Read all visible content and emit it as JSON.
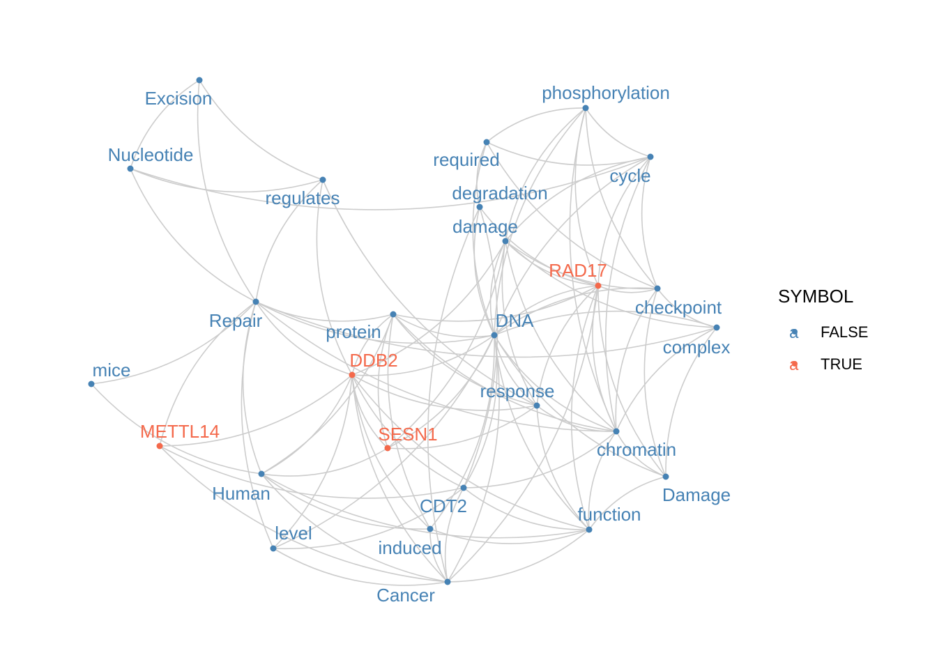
{
  "colors": {
    "false_color": "#4682b4",
    "true_color": "#f4694b",
    "edge_color": "#cccccc"
  },
  "legend": {
    "title": "SYMBOL",
    "items": [
      {
        "key_glyph": "a",
        "label": "FALSE",
        "symbol": false
      },
      {
        "key_glyph": "a",
        "label": "TRUE",
        "symbol": true
      }
    ]
  },
  "nodes": [
    {
      "id": "Excision",
      "label": "Excision",
      "symbol": false
    },
    {
      "id": "Nucleotide",
      "label": "Nucleotide",
      "symbol": false
    },
    {
      "id": "regulates",
      "label": "regulates",
      "symbol": false
    },
    {
      "id": "Repair",
      "label": "Repair",
      "symbol": false
    },
    {
      "id": "mice",
      "label": "mice",
      "symbol": false
    },
    {
      "id": "METTL14",
      "label": "METTL14",
      "symbol": true
    },
    {
      "id": "Human",
      "label": "Human",
      "symbol": false
    },
    {
      "id": "level",
      "label": "level",
      "symbol": false
    },
    {
      "id": "protein",
      "label": "protein",
      "symbol": false
    },
    {
      "id": "DDB2",
      "label": "DDB2",
      "symbol": true
    },
    {
      "id": "SESN1",
      "label": "SESN1",
      "symbol": true
    },
    {
      "id": "CDT2",
      "label": "CDT2",
      "symbol": false
    },
    {
      "id": "induced",
      "label": "induced",
      "symbol": false
    },
    {
      "id": "Cancer",
      "label": "Cancer",
      "symbol": false
    },
    {
      "id": "phosphorylation",
      "label": "phosphorylation",
      "symbol": false
    },
    {
      "id": "required",
      "label": "required",
      "symbol": false
    },
    {
      "id": "cycle",
      "label": "cycle",
      "symbol": false
    },
    {
      "id": "degradation",
      "label": "degradation",
      "symbol": false
    },
    {
      "id": "damage",
      "label": "damage",
      "symbol": false
    },
    {
      "id": "RAD17",
      "label": "RAD17",
      "symbol": true
    },
    {
      "id": "checkpoint",
      "label": "checkpoint",
      "symbol": false
    },
    {
      "id": "complex",
      "label": "complex",
      "symbol": false
    },
    {
      "id": "DNA",
      "label": "DNA",
      "symbol": false
    },
    {
      "id": "response",
      "label": "response",
      "symbol": false
    },
    {
      "id": "chromatin",
      "label": "chromatin",
      "symbol": false
    },
    {
      "id": "Damage",
      "label": "Damage",
      "symbol": false
    },
    {
      "id": "function",
      "label": "function",
      "symbol": false
    }
  ],
  "edges": [
    [
      "Excision",
      "Nucleotide"
    ],
    [
      "Excision",
      "regulates"
    ],
    [
      "Excision",
      "Repair"
    ],
    [
      "Nucleotide",
      "regulates"
    ],
    [
      "Nucleotide",
      "Repair"
    ],
    [
      "Nucleotide",
      "cycle"
    ],
    [
      "regulates",
      "Repair"
    ],
    [
      "regulates",
      "DDB2"
    ],
    [
      "regulates",
      "response"
    ],
    [
      "Repair",
      "DNA"
    ],
    [
      "Repair",
      "Human"
    ],
    [
      "Repair",
      "level"
    ],
    [
      "Repair",
      "METTL14"
    ],
    [
      "Repair",
      "protein"
    ],
    [
      "Repair",
      "DDB2"
    ],
    [
      "Repair",
      "chromatin"
    ],
    [
      "Repair",
      "complex"
    ],
    [
      "mice",
      "Human"
    ],
    [
      "mice",
      "Repair"
    ],
    [
      "METTL14",
      "Cancer"
    ],
    [
      "METTL14",
      "CDT2"
    ],
    [
      "METTL14",
      "DDB2"
    ],
    [
      "Human",
      "DDB2"
    ],
    [
      "Human",
      "SESN1"
    ],
    [
      "Human",
      "protein"
    ],
    [
      "Human",
      "Cancer"
    ],
    [
      "Human",
      "function"
    ],
    [
      "Human",
      "induced"
    ],
    [
      "level",
      "DDB2"
    ],
    [
      "level",
      "CDT2"
    ],
    [
      "level",
      "Cancer"
    ],
    [
      "level",
      "DNA"
    ],
    [
      "protein",
      "DDB2"
    ],
    [
      "protein",
      "RAD17"
    ],
    [
      "protein",
      "DNA"
    ],
    [
      "protein",
      "chromatin"
    ],
    [
      "protein",
      "response"
    ],
    [
      "protein",
      "induced"
    ],
    [
      "protein",
      "SESN1"
    ],
    [
      "DDB2",
      "DNA"
    ],
    [
      "DDB2",
      "damage"
    ],
    [
      "DDB2",
      "response"
    ],
    [
      "DDB2",
      "SESN1"
    ],
    [
      "DDB2",
      "CDT2"
    ],
    [
      "DDB2",
      "induced"
    ],
    [
      "DDB2",
      "Cancer"
    ],
    [
      "DDB2",
      "function"
    ],
    [
      "SESN1",
      "DNA"
    ],
    [
      "SESN1",
      "damage"
    ],
    [
      "SESN1",
      "response"
    ],
    [
      "CDT2",
      "DNA"
    ],
    [
      "CDT2",
      "degradation"
    ],
    [
      "CDT2",
      "function"
    ],
    [
      "CDT2",
      "chromatin"
    ],
    [
      "CDT2",
      "Cancer"
    ],
    [
      "induced",
      "DNA"
    ],
    [
      "induced",
      "function"
    ],
    [
      "induced",
      "Cancer"
    ],
    [
      "Cancer",
      "DNA"
    ],
    [
      "Cancer",
      "function"
    ],
    [
      "Cancer",
      "RAD17"
    ],
    [
      "phosphorylation",
      "required"
    ],
    [
      "phosphorylation",
      "cycle"
    ],
    [
      "phosphorylation",
      "DNA"
    ],
    [
      "phosphorylation",
      "checkpoint"
    ],
    [
      "phosphorylation",
      "RAD17"
    ],
    [
      "phosphorylation",
      "chromatin"
    ],
    [
      "phosphorylation",
      "damage"
    ],
    [
      "required",
      "cycle"
    ],
    [
      "required",
      "degradation"
    ],
    [
      "required",
      "checkpoint"
    ],
    [
      "required",
      "DNA"
    ],
    [
      "cycle",
      "checkpoint"
    ],
    [
      "cycle",
      "DNA"
    ],
    [
      "cycle",
      "RAD17"
    ],
    [
      "cycle",
      "chromatin"
    ],
    [
      "cycle",
      "damage"
    ],
    [
      "degradation",
      "DNA"
    ],
    [
      "degradation",
      "Cancer"
    ],
    [
      "degradation",
      "RAD17"
    ],
    [
      "damage",
      "RAD17"
    ],
    [
      "damage",
      "checkpoint"
    ],
    [
      "damage",
      "DNA"
    ],
    [
      "damage",
      "response"
    ],
    [
      "damage",
      "chromatin"
    ],
    [
      "damage",
      "complex"
    ],
    [
      "RAD17",
      "checkpoint"
    ],
    [
      "RAD17",
      "DNA"
    ],
    [
      "RAD17",
      "chromatin"
    ],
    [
      "RAD17",
      "Damage"
    ],
    [
      "RAD17",
      "function"
    ],
    [
      "RAD17",
      "response"
    ],
    [
      "checkpoint",
      "complex"
    ],
    [
      "checkpoint",
      "DNA"
    ],
    [
      "checkpoint",
      "chromatin"
    ],
    [
      "checkpoint",
      "Damage"
    ],
    [
      "complex",
      "DNA"
    ],
    [
      "complex",
      "chromatin"
    ],
    [
      "complex",
      "Damage"
    ],
    [
      "DNA",
      "response"
    ],
    [
      "DNA",
      "chromatin"
    ],
    [
      "DNA",
      "Damage"
    ],
    [
      "DNA",
      "function"
    ],
    [
      "response",
      "chromatin"
    ],
    [
      "response",
      "function"
    ],
    [
      "chromatin",
      "Damage"
    ],
    [
      "chromatin",
      "function"
    ],
    [
      "Damage",
      "function"
    ]
  ]
}
